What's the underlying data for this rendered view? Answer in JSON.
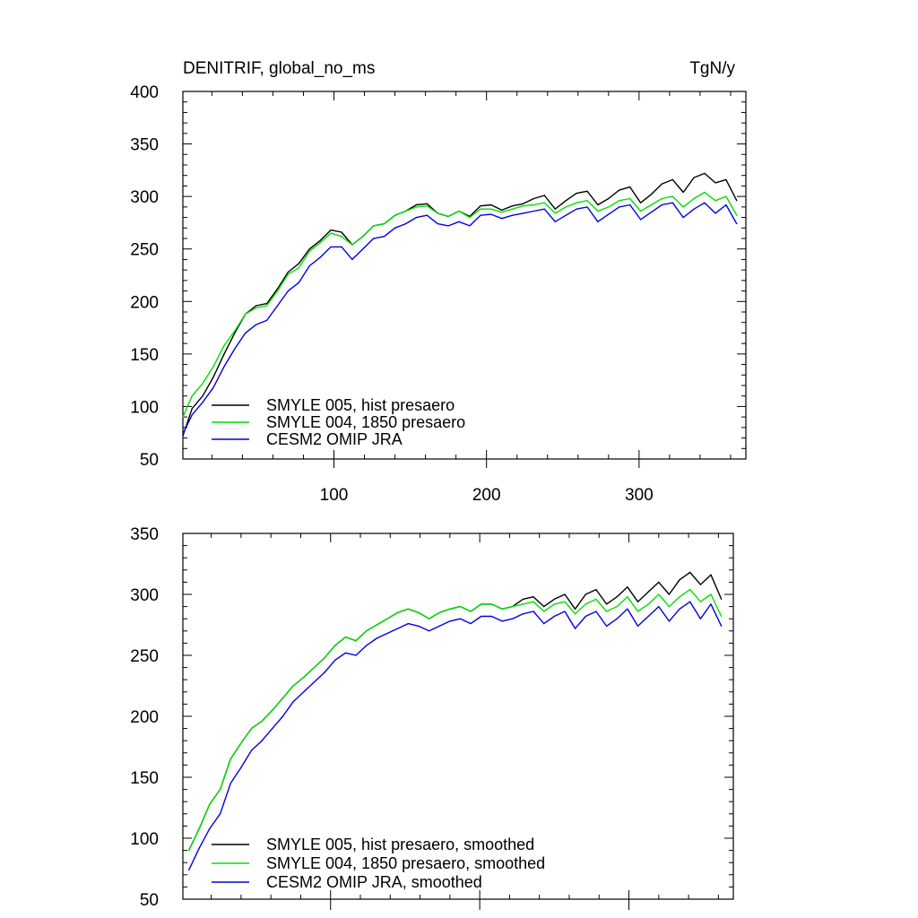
{
  "chart_data": [
    {
      "type": "line",
      "title": "DENITRIF, global_no_ms",
      "units": "TgN/y",
      "xlabel": "",
      "ylabel": "",
      "xlim": [
        1,
        370
      ],
      "ylim": [
        50,
        400
      ],
      "xticks": [
        100,
        200,
        300
      ],
      "yticks": [
        50,
        100,
        150,
        200,
        250,
        300,
        350,
        400
      ],
      "grid": false,
      "legend_position": "lower-left",
      "series": [
        {
          "name": "SMYLE 005, hist presaero",
          "color": "#000000",
          "x": [
            1,
            7,
            14,
            21,
            28,
            35,
            42,
            49,
            56,
            63,
            70,
            77,
            84,
            91,
            98,
            105,
            112,
            119,
            126,
            133,
            140,
            147,
            154,
            161,
            168,
            175,
            182,
            189,
            196,
            203,
            210,
            217,
            224,
            231,
            238,
            245,
            252,
            259,
            266,
            273,
            280,
            287,
            294,
            301,
            308,
            315,
            322,
            329,
            336,
            343,
            350,
            357,
            364
          ],
          "values": [
            72,
            98,
            110,
            128,
            150,
            170,
            188,
            196,
            198,
            212,
            228,
            236,
            250,
            258,
            268,
            266,
            254,
            262,
            272,
            274,
            282,
            286,
            292,
            293,
            284,
            281,
            286,
            281,
            291,
            292,
            287,
            291,
            293,
            298,
            301,
            288,
            296,
            303,
            305,
            292,
            298,
            306,
            309,
            294,
            302,
            312,
            316,
            304,
            318,
            322,
            313,
            316,
            296
          ]
        },
        {
          "name": "SMYLE 004, 1850 presaero",
          "color": "#00e000",
          "x": [
            1,
            7,
            14,
            21,
            28,
            35,
            42,
            49,
            56,
            63,
            70,
            77,
            84,
            91,
            98,
            105,
            112,
            119,
            126,
            133,
            140,
            147,
            154,
            161,
            168,
            175,
            182,
            189,
            196,
            203,
            210,
            217,
            224,
            231,
            238,
            245,
            252,
            259,
            266,
            273,
            280,
            287,
            294,
            301,
            308,
            315,
            322,
            329,
            336,
            343,
            350,
            357,
            364
          ],
          "values": [
            90,
            110,
            122,
            138,
            158,
            172,
            188,
            194,
            196,
            210,
            226,
            232,
            248,
            256,
            265,
            262,
            254,
            262,
            272,
            274,
            282,
            286,
            290,
            291,
            284,
            281,
            286,
            280,
            288,
            288,
            285,
            288,
            291,
            292,
            294,
            284,
            290,
            294,
            296,
            286,
            290,
            296,
            298,
            286,
            292,
            298,
            300,
            290,
            298,
            304,
            296,
            300,
            282
          ]
        },
        {
          "name": "CESM2 OMIP JRA",
          "color": "#0000e0",
          "x": [
            1,
            7,
            14,
            21,
            28,
            35,
            42,
            49,
            56,
            63,
            70,
            77,
            84,
            91,
            98,
            105,
            112,
            119,
            126,
            133,
            140,
            147,
            154,
            161,
            168,
            175,
            182,
            189,
            196,
            203,
            210,
            217,
            224,
            231,
            238,
            245,
            252,
            259,
            266,
            273,
            280,
            287,
            294,
            301,
            308,
            315,
            322,
            329,
            336,
            343,
            350,
            357,
            364
          ],
          "values": [
            74,
            92,
            104,
            118,
            138,
            155,
            170,
            178,
            182,
            196,
            210,
            218,
            234,
            242,
            252,
            252,
            240,
            250,
            260,
            262,
            270,
            274,
            280,
            282,
            274,
            272,
            276,
            272,
            282,
            283,
            279,
            282,
            284,
            286,
            288,
            276,
            282,
            288,
            290,
            276,
            283,
            290,
            292,
            278,
            285,
            292,
            294,
            280,
            288,
            294,
            284,
            292,
            274
          ]
        }
      ]
    },
    {
      "type": "line",
      "title": "",
      "xlabel": "",
      "ylabel": "",
      "xlim": [
        1,
        370
      ],
      "ylim": [
        50,
        350
      ],
      "xticks": [
        100,
        200,
        300
      ],
      "yticks": [
        50,
        100,
        150,
        200,
        250,
        300,
        350
      ],
      "grid": false,
      "legend_position": "lower-left",
      "series": [
        {
          "name": "SMYLE 005, hist presaero, smoothed",
          "color": "#000000",
          "x": [
            5,
            12,
            19,
            26,
            33,
            40,
            47,
            54,
            61,
            68,
            75,
            82,
            89,
            96,
            103,
            110,
            117,
            124,
            131,
            138,
            145,
            152,
            159,
            166,
            173,
            180,
            187,
            194,
            201,
            208,
            215,
            222,
            229,
            236,
            243,
            250,
            257,
            264,
            271,
            278,
            285,
            292,
            299,
            306,
            313,
            320,
            327,
            334,
            341,
            348,
            355,
            362
          ],
          "values": [
            90,
            108,
            128,
            140,
            165,
            178,
            190,
            196,
            205,
            215,
            225,
            232,
            240,
            248,
            258,
            265,
            262,
            270,
            275,
            280,
            285,
            288,
            285,
            280,
            285,
            288,
            290,
            286,
            292,
            292,
            288,
            290,
            296,
            298,
            290,
            296,
            300,
            288,
            300,
            304,
            292,
            298,
            306,
            294,
            302,
            310,
            300,
            312,
            318,
            308,
            316,
            296
          ]
        },
        {
          "name": "SMYLE 004, 1850 presaero, smoothed",
          "color": "#00e000",
          "x": [
            5,
            12,
            19,
            26,
            33,
            40,
            47,
            54,
            61,
            68,
            75,
            82,
            89,
            96,
            103,
            110,
            117,
            124,
            131,
            138,
            145,
            152,
            159,
            166,
            173,
            180,
            187,
            194,
            201,
            208,
            215,
            222,
            229,
            236,
            243,
            250,
            257,
            264,
            271,
            278,
            285,
            292,
            299,
            306,
            313,
            320,
            327,
            334,
            341,
            348,
            355,
            362
          ],
          "values": [
            90,
            108,
            128,
            140,
            165,
            178,
            190,
            196,
            205,
            215,
            225,
            232,
            240,
            248,
            258,
            265,
            262,
            270,
            275,
            280,
            285,
            288,
            285,
            280,
            285,
            288,
            290,
            286,
            292,
            292,
            288,
            290,
            292,
            294,
            286,
            292,
            294,
            284,
            292,
            296,
            286,
            290,
            298,
            286,
            292,
            300,
            290,
            298,
            304,
            294,
            300,
            282
          ]
        },
        {
          "name": "CESM2 OMIP JRA, smoothed",
          "color": "#0000e0",
          "x": [
            5,
            12,
            19,
            26,
            33,
            40,
            47,
            54,
            61,
            68,
            75,
            82,
            89,
            96,
            103,
            110,
            117,
            124,
            131,
            138,
            145,
            152,
            159,
            166,
            173,
            180,
            187,
            194,
            201,
            208,
            215,
            222,
            229,
            236,
            243,
            250,
            257,
            264,
            271,
            278,
            285,
            292,
            299,
            306,
            313,
            320,
            327,
            334,
            341,
            348,
            355,
            362
          ],
          "values": [
            74,
            92,
            108,
            120,
            145,
            158,
            172,
            180,
            190,
            200,
            212,
            220,
            228,
            236,
            246,
            252,
            250,
            258,
            264,
            268,
            272,
            276,
            274,
            270,
            274,
            278,
            280,
            276,
            282,
            282,
            278,
            280,
            284,
            286,
            276,
            282,
            286,
            272,
            282,
            286,
            274,
            280,
            288,
            274,
            282,
            290,
            278,
            288,
            294,
            280,
            292,
            274
          ]
        }
      ]
    }
  ]
}
